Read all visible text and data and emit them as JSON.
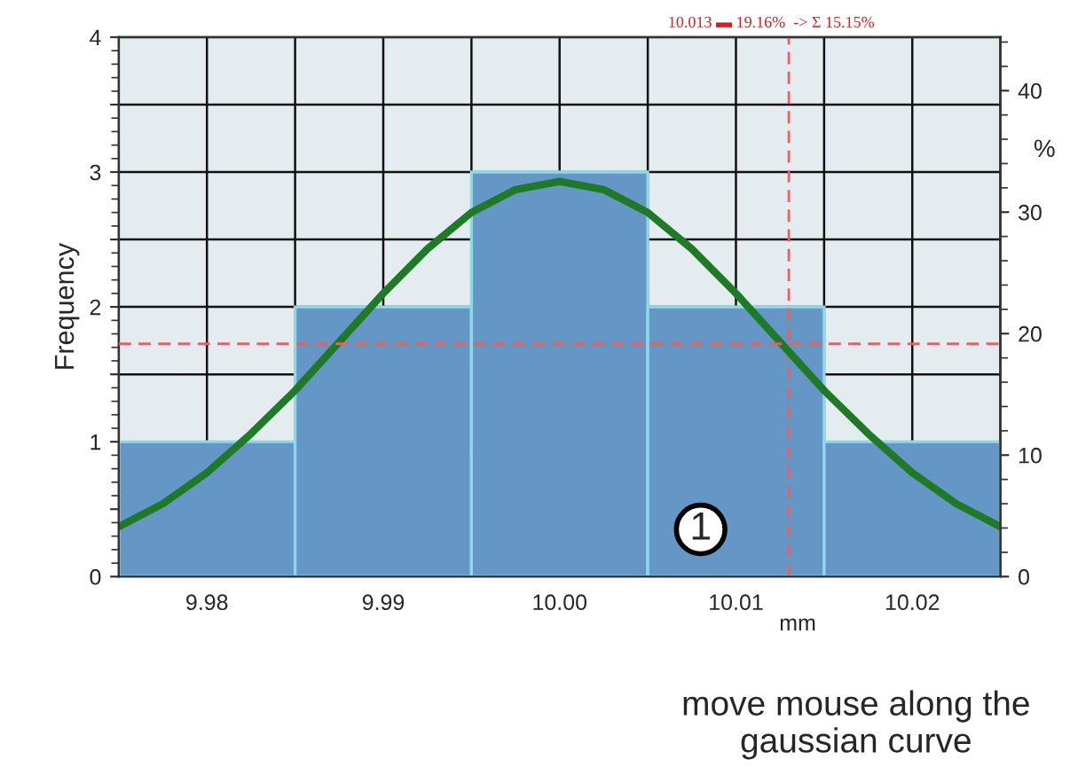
{
  "chart_data": {
    "type": "histogram",
    "xlabel": "mm",
    "ylabel": "Frequency",
    "y2label": "%",
    "bins": [
      9.975,
      9.985,
      9.995,
      10.005,
      10.015,
      10.025
    ],
    "series": [
      {
        "color": "#6496c6",
        "values": [
          1,
          2,
          3,
          2,
          1
        ]
      },
      {
        "type": "line",
        "color": "#1e7a24",
        "x": [
          9.975,
          9.9775,
          9.98,
          9.9825,
          9.985,
          9.9875,
          9.99,
          9.9925,
          9.995,
          9.9975,
          10.0,
          10.0025,
          10.005,
          10.0075,
          10.01,
          10.0125,
          10.015,
          10.0175,
          10.02,
          10.0225,
          10.025
        ],
        "values": [
          0.37,
          0.54,
          0.77,
          1.06,
          1.38,
          1.74,
          2.1,
          2.43,
          2.7,
          2.87,
          2.93,
          2.87,
          2.7,
          2.43,
          2.1,
          1.74,
          1.38,
          1.06,
          0.77,
          0.54,
          0.37
        ]
      }
    ],
    "xlim": [
      9.975,
      10.025
    ],
    "xticks": [
      {
        "value": 9.975,
        "label": null
      },
      9.98,
      {
        "value": 9.985,
        "label": null
      },
      9.99,
      {
        "value": 9.995,
        "label": null
      },
      {
        "value": 10.0,
        "label": "10.00"
      },
      {
        "value": 10.005,
        "label": null
      },
      10.01,
      {
        "value": 10.015,
        "label": null
      },
      10.02,
      {
        "value": 10.025,
        "label": null
      }
    ],
    "ylim": [
      0,
      4
    ],
    "yticks": [
      0,
      {
        "value": 0.5,
        "label": null
      },
      1,
      {
        "value": 1.5,
        "label": null
      },
      2,
      {
        "value": 2.5,
        "label": null
      },
      3,
      {
        "value": 3.5,
        "label": null
      },
      4
    ],
    "y2lim": [
      0,
      44.4
    ],
    "y2ticks": [
      0,
      10,
      20,
      30,
      40
    ],
    "grid": true,
    "ref_lines": [
      {
        "axis": "x",
        "value": 10.013,
        "color": "#e06464",
        "line_style": "dashed"
      },
      {
        "axis": "y2",
        "value": 19.16,
        "color": "#e06464",
        "line_style": "dashed"
      }
    ],
    "annotations": [
      "10.013 ▬ 19.16%  -> Σ 15.15%",
      {
        "text": "1",
        "x": 10.008,
        "y": 0.35
      },
      "move mouse along the gaussian curve"
    ]
  }
}
